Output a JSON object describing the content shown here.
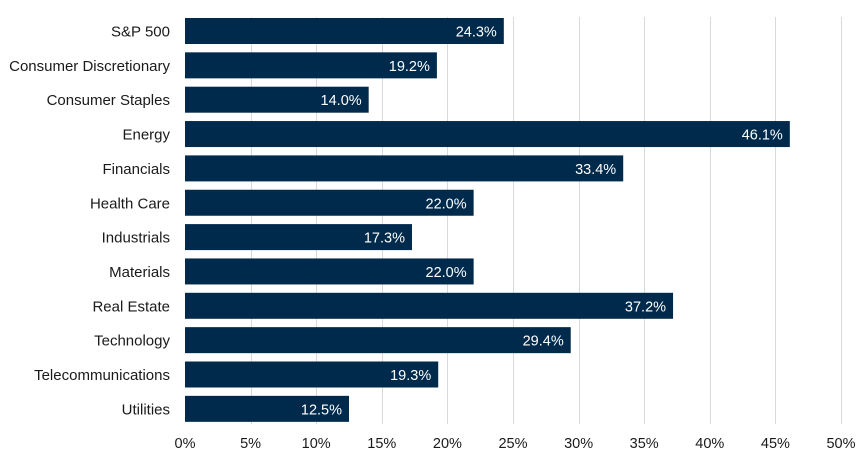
{
  "chart_data": {
    "type": "bar",
    "orientation": "horizontal",
    "categories": [
      "S&P 500",
      "Consumer Discretionary",
      "Consumer Staples",
      "Energy",
      "Financials",
      "Health Care",
      "Industrials",
      "Materials",
      "Real Estate",
      "Technology",
      "Telecommunications",
      "Utilities"
    ],
    "values": [
      24.3,
      19.2,
      14.0,
      46.1,
      33.4,
      22.0,
      17.3,
      22.0,
      37.2,
      29.4,
      19.3,
      12.5
    ],
    "value_labels": [
      "24.3%",
      "19.2%",
      "14.0%",
      "46.1%",
      "33.4%",
      "22.0%",
      "17.3%",
      "22.0%",
      "37.2%",
      "29.4%",
      "19.3%",
      "12.5%"
    ],
    "xlim": [
      0,
      50
    ],
    "x_ticks": [
      0,
      5,
      10,
      15,
      20,
      25,
      30,
      35,
      40,
      45,
      50
    ],
    "x_tick_labels": [
      "0%",
      "5%",
      "10%",
      "15%",
      "20%",
      "25%",
      "30%",
      "35%",
      "40%",
      "45%",
      "50%"
    ],
    "grid": "vertical",
    "legend": "none",
    "title": "",
    "xlabel": "",
    "ylabel": "",
    "bar_color": "#002a4c"
  }
}
